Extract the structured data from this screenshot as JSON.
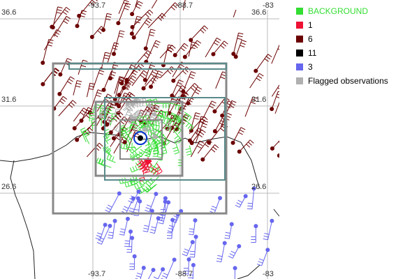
{
  "map": {
    "top_labels": [
      "-93.7",
      "-88.7",
      "-83"
    ],
    "bottom_labels": [
      "-93.7",
      "-88.7",
      "-83"
    ],
    "left_labels": [
      "36.6",
      "31.6",
      "26.6"
    ],
    "right_labels": [
      "36.6",
      "31.6",
      "26.6"
    ]
  },
  "legend": {
    "items": [
      {
        "label": "BACKGROUND",
        "color": "#33dd33"
      },
      {
        "label": "1",
        "color": "#ee1133"
      },
      {
        "label": "6",
        "color": "#6b0000"
      },
      {
        "label": "11",
        "color": "#000000"
      },
      {
        "label": "3",
        "color": "#6666ee"
      },
      {
        "label": "Flagged observations",
        "color": "#b0b0b0"
      }
    ]
  }
}
